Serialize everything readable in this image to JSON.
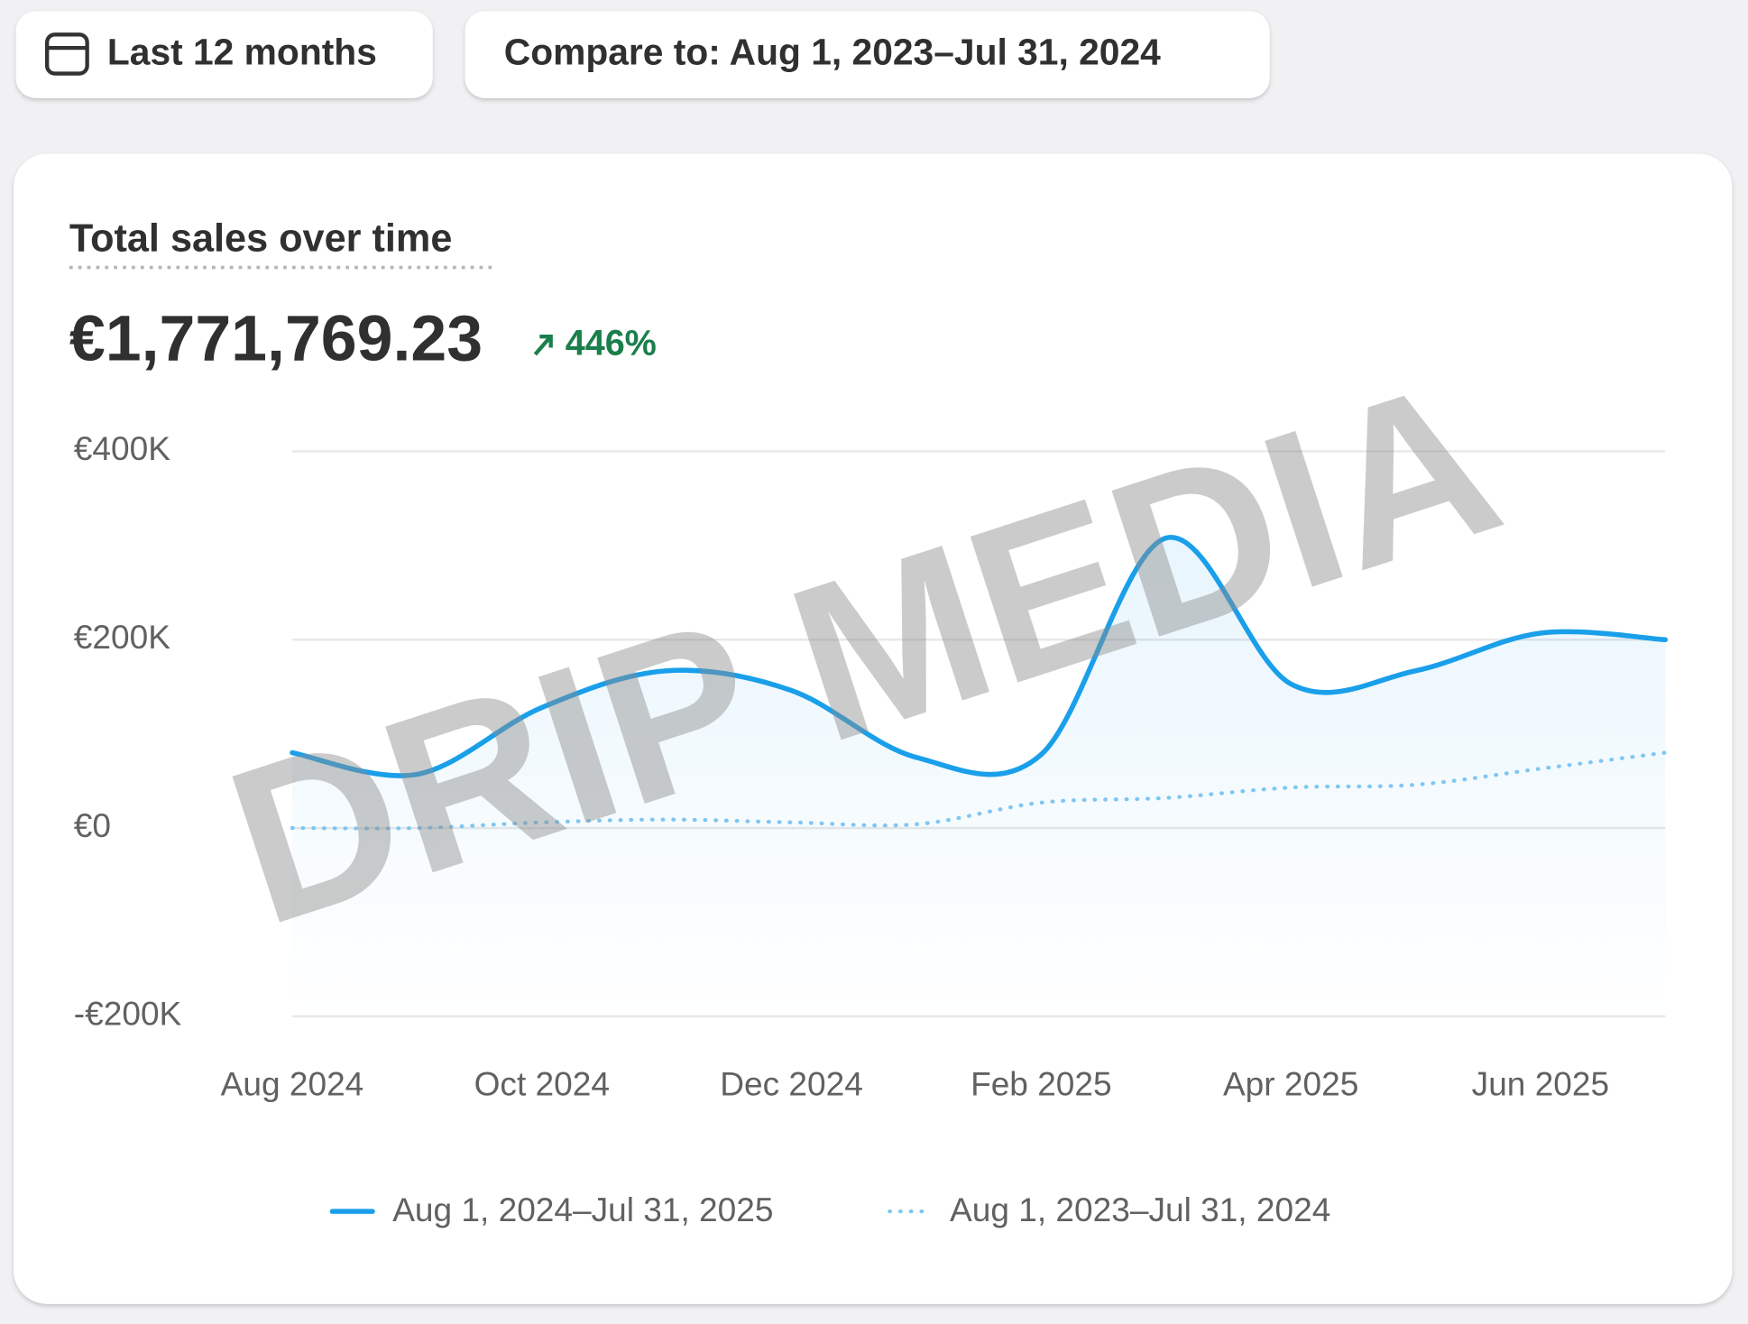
{
  "toolbar": {
    "date_range": "Last 12 months",
    "compare": "Compare to: Aug 1, 2023–Jul 31, 2024"
  },
  "card": {
    "title": "Total sales over time",
    "total": "€1,771,769.23",
    "change": "446%"
  },
  "watermark": "DRIP MEDIA",
  "chart_data": {
    "type": "line",
    "categories": [
      "Aug 2024",
      null,
      "Oct 2024",
      null,
      "Dec 2024",
      null,
      "Feb 2025",
      null,
      "Apr 2025",
      null,
      "Jun 2025",
      null
    ],
    "series": [
      {
        "name": "Aug 1, 2024–Jul 31, 2025",
        "color": "#1a9fea",
        "style": "solid",
        "values": [
          80000,
          57000,
          128000,
          167000,
          146000,
          75000,
          78000,
          308000,
          153000,
          167000,
          207000,
          200000
        ]
      },
      {
        "name": "Aug 1, 2023–Jul 31, 2024",
        "color": "#7fc6f2",
        "style": "dotted",
        "values": [
          0,
          0,
          6000,
          9000,
          6000,
          4000,
          27000,
          32000,
          43000,
          46000,
          63000,
          80000
        ]
      }
    ],
    "ylim": [
      -200000,
      400000
    ],
    "yticks": [
      {
        "value": -200000,
        "label": "-€200K"
      },
      {
        "value": 0,
        "label": "€0"
      },
      {
        "value": 200000,
        "label": "€200K"
      },
      {
        "value": 400000,
        "label": "€400K"
      }
    ],
    "grid": true,
    "legend": "bottom"
  }
}
